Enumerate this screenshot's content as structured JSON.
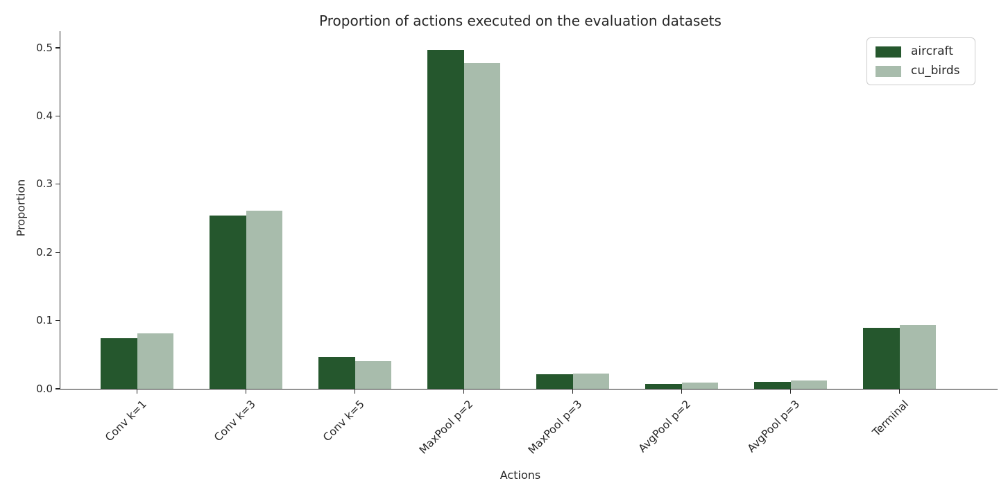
{
  "chart_data": {
    "type": "bar",
    "title": "Proportion of actions executed on the evaluation datasets",
    "xlabel": "Actions",
    "ylabel": "Proportion",
    "categories": [
      "Conv k=1",
      "Conv k=3",
      "Conv k=5",
      "MaxPool p=2",
      "MaxPool p=3",
      "AvgPool p=2",
      "AvgPool p=3",
      "Terminal"
    ],
    "series": [
      {
        "name": "aircraft",
        "color": "#25572d",
        "values": [
          0.074,
          0.254,
          0.047,
          0.497,
          0.021,
          0.007,
          0.01,
          0.089
        ]
      },
      {
        "name": "cu_birds",
        "color": "#a8bcac",
        "values": [
          0.081,
          0.261,
          0.041,
          0.478,
          0.022,
          0.009,
          0.012,
          0.093
        ]
      }
    ],
    "ylim": [
      0,
      0.524
    ],
    "yticks": [
      0.0,
      0.1,
      0.2,
      0.3,
      0.4,
      0.5
    ],
    "grid": false,
    "legend_position": "upper right",
    "xtick_rotation": 45,
    "spine_color": "#262626",
    "text_color": "#262626"
  }
}
